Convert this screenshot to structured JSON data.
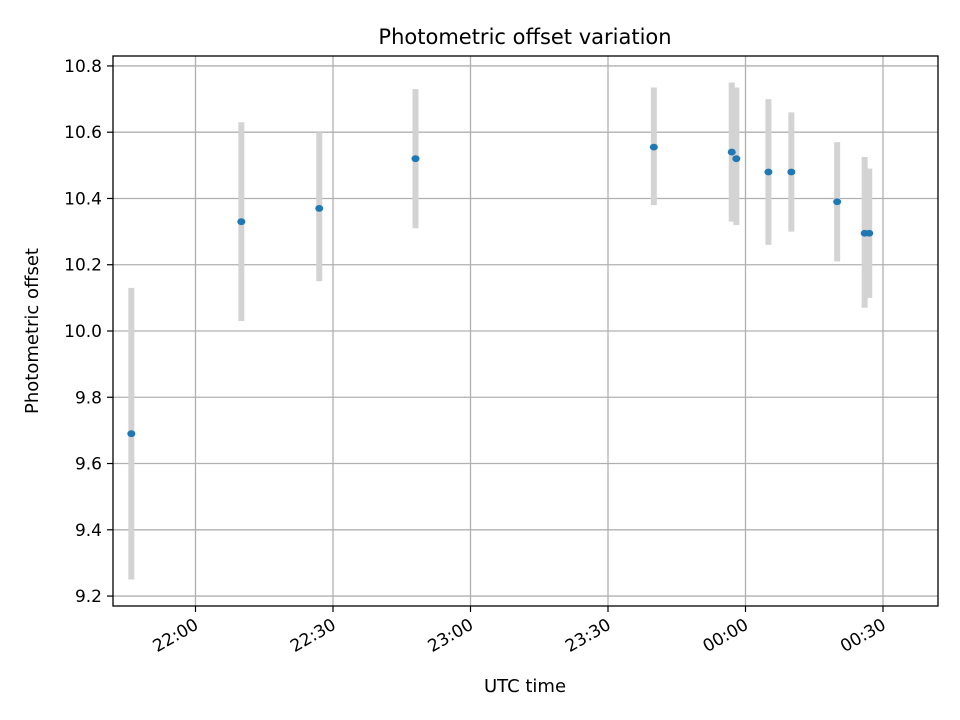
{
  "chart_data": {
    "type": "scatter",
    "title": "Photometric offset variation",
    "xlabel": "UTC time",
    "ylabel": "Photometric offset",
    "x_is_time": true,
    "xlim": [
      "21:42",
      "24:42"
    ],
    "ylim": [
      9.17,
      10.83
    ],
    "grid": true,
    "x_ticks": [
      {
        "value": "22:00",
        "label": "22:00"
      },
      {
        "value": "22:30",
        "label": "22:30"
      },
      {
        "value": "23:00",
        "label": "23:00"
      },
      {
        "value": "23:30",
        "label": "23:30"
      },
      {
        "value": "24:00",
        "label": "00:00"
      },
      {
        "value": "24:30",
        "label": "00:30"
      }
    ],
    "y_ticks": [
      9.2,
      9.4,
      9.6,
      9.8,
      10.0,
      10.2,
      10.4,
      10.6,
      10.8
    ],
    "y_tick_labels": [
      "9.2",
      "9.4",
      "9.6",
      "9.8",
      "10.0",
      "10.2",
      "10.4",
      "10.6",
      "10.8"
    ],
    "marker_color": "#1f77b4",
    "errorbar_color": "#d3d3d3",
    "series": [
      {
        "points": [
          {
            "x": "21:46",
            "y": 9.69,
            "ylow": 9.25,
            "yhigh": 10.13
          },
          {
            "x": "22:10",
            "y": 10.33,
            "ylow": 10.03,
            "yhigh": 10.63
          },
          {
            "x": "22:27",
            "y": 10.37,
            "ylow": 10.15,
            "yhigh": 10.6
          },
          {
            "x": "22:48",
            "y": 10.52,
            "ylow": 10.31,
            "yhigh": 10.73
          },
          {
            "x": "23:40",
            "y": 10.555,
            "ylow": 10.38,
            "yhigh": 10.735
          },
          {
            "x": "23:57",
            "y": 10.54,
            "ylow": 10.33,
            "yhigh": 10.75
          },
          {
            "x": "23:58",
            "y": 10.52,
            "ylow": 10.32,
            "yhigh": 10.735
          },
          {
            "x": "24:05",
            "y": 10.48,
            "ylow": 10.26,
            "yhigh": 10.7
          },
          {
            "x": "24:10",
            "y": 10.48,
            "ylow": 10.3,
            "yhigh": 10.66
          },
          {
            "x": "24:20",
            "y": 10.39,
            "ylow": 10.21,
            "yhigh": 10.57
          },
          {
            "x": "24:26",
            "y": 10.295,
            "ylow": 10.07,
            "yhigh": 10.525
          },
          {
            "x": "24:27",
            "y": 10.295,
            "ylow": 10.1,
            "yhigh": 10.49
          }
        ]
      }
    ]
  }
}
